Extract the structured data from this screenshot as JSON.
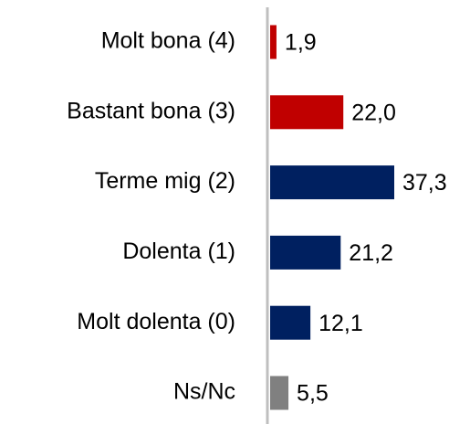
{
  "chart_data": {
    "type": "bar",
    "orientation": "horizontal",
    "categories": [
      "Molt bona (4)",
      "Bastant bona (3)",
      "Terme mig (2)",
      "Dolenta (1)",
      "Molt dolenta (0)",
      "Ns/Nc"
    ],
    "values": [
      1.9,
      22.0,
      37.3,
      21.2,
      12.1,
      5.5
    ],
    "value_labels": [
      "1,9",
      "22,0",
      "37,3",
      "21,2",
      "12,1",
      "5,5"
    ],
    "colors": [
      "#c00000",
      "#c00000",
      "#002060",
      "#002060",
      "#002060",
      "#808080"
    ]
  }
}
